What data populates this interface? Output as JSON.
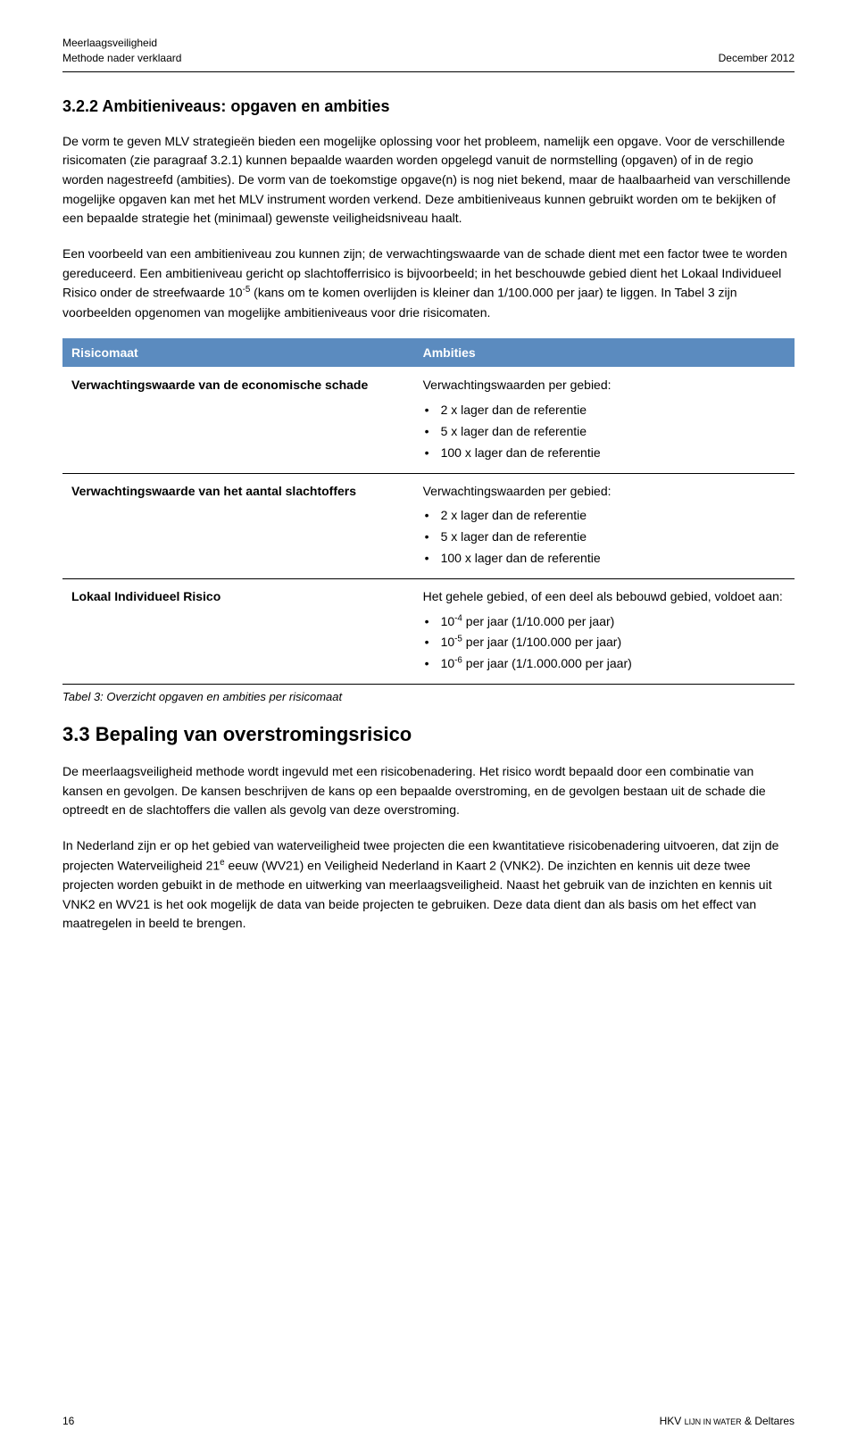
{
  "header": {
    "left_line1": "Meerlaagsveiligheid",
    "left_line2": "Methode nader verklaard",
    "right": "December 2012"
  },
  "section_322": {
    "title": "3.2.2 Ambitieniveaus: opgaven en ambities",
    "para1": "De vorm te geven MLV strategieën bieden een mogelijke oplossing voor het probleem, namelijk een opgave. Voor de verschillende risicomaten (zie paragraaf 3.2.1) kunnen bepaalde waarden worden opgelegd vanuit de normstelling (opgaven) of in de regio worden nagestreefd (ambities). De vorm van de toekomstige opgave(n) is nog niet bekend, maar de haalbaarheid van verschillende mogelijke opgaven kan met het MLV instrument worden verkend. Deze ambitieniveaus kunnen gebruikt worden om te bekijken of een bepaalde strategie het (minimaal) gewenste veiligheidsniveau haalt.",
    "para2_pre": "Een voorbeeld van een ambitieniveau zou kunnen zijn; de verwachtingswaarde van de schade dient met een factor twee te worden gereduceerd. Een ambitieniveau gericht op slachtofferrisico is bijvoorbeeld; in het beschouwde gebied dient het Lokaal Individueel Risico onder de streefwaarde 10",
    "para2_exp": "-5",
    "para2_post": " (kans om te komen overlijden is kleiner dan 1/100.000 per jaar) te liggen. In Tabel 3 zijn voorbeelden opgenomen van mogelijke ambitieniveaus voor drie risicomaten."
  },
  "table": {
    "header_left": "Risicomaat",
    "header_right": "Ambities",
    "rows": [
      {
        "left": "Verwachtingswaarde van de economische schade",
        "right_intro": "Verwachtingswaarden per gebied:",
        "bullets": [
          "2 x lager dan de referentie",
          "5 x lager dan de referentie",
          "100 x lager dan de referentie"
        ]
      },
      {
        "left": "Verwachtingswaarde van het aantal slachtoffers",
        "right_intro": "Verwachtingswaarden per gebied:",
        "bullets": [
          "2 x lager dan de referentie",
          "5 x lager dan de referentie",
          "100 x lager dan de referentie"
        ]
      },
      {
        "left": "Lokaal Individueel Risico",
        "right_intro": "Het gehele gebied, of een deel als bebouwd gebied, voldoet aan:",
        "bullets_sup": [
          {
            "pre": "10",
            "exp": "-4",
            "post": " per jaar (1/10.000 per jaar)"
          },
          {
            "pre": "10",
            "exp": "-5",
            "post": " per jaar (1/100.000 per jaar)"
          },
          {
            "pre": "10",
            "exp": "-6",
            "post": " per jaar (1/1.000.000 per jaar)"
          }
        ]
      }
    ],
    "caption": "Tabel 3: Overzicht opgaven en ambities per risicomaat"
  },
  "section_33": {
    "title": "3.3   Bepaling van overstromingsrisico",
    "para1": "De meerlaagsveiligheid methode wordt ingevuld met een risicobenadering. Het risico wordt bepaald door een combinatie van kansen en gevolgen. De kansen beschrijven de kans op een bepaalde overstroming, en de gevolgen bestaan uit de schade die optreedt en de slachtoffers die vallen als gevolg van deze overstroming.",
    "para2_pre": "In Nederland zijn er op het gebied van waterveiligheid twee projecten die een kwantitatieve risicobenadering uitvoeren, dat zijn de projecten Waterveiligheid 21",
    "para2_exp": "e",
    "para2_post": " eeuw (WV21) en Veiligheid Nederland in Kaart 2 (VNK2). De inzichten en kennis uit deze twee projecten worden gebuikt in de methode en uitwerking van meerlaagsveiligheid. Naast het gebruik van de inzichten en kennis uit VNK2 en WV21 is het ook mogelijk de data van beide projecten te gebruiken. Deze data dient dan als basis om het effect van maatregelen in beeld te brengen."
  },
  "footer": {
    "page_number": "16",
    "right_prefix": "HKV ",
    "right_small": "LIJN IN WATER",
    "right_suffix": " & Deltares"
  },
  "colors": {
    "table_header_bg": "#5b8bbf",
    "table_header_fg": "#ffffff",
    "text": "#000000",
    "rule": "#000000"
  }
}
